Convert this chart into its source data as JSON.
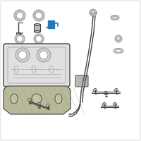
{
  "bg_color": "#ffffff",
  "border_color": "#dddddd",
  "part_color": "#cccccc",
  "line_color": "#999999",
  "dark_color": "#444444",
  "mid_color": "#bbbbbb",
  "highlight_color": "#2277bb",
  "bracket_color": "#b8b89a",
  "fig_width": 2.0,
  "fig_height": 2.0,
  "dpi": 100
}
